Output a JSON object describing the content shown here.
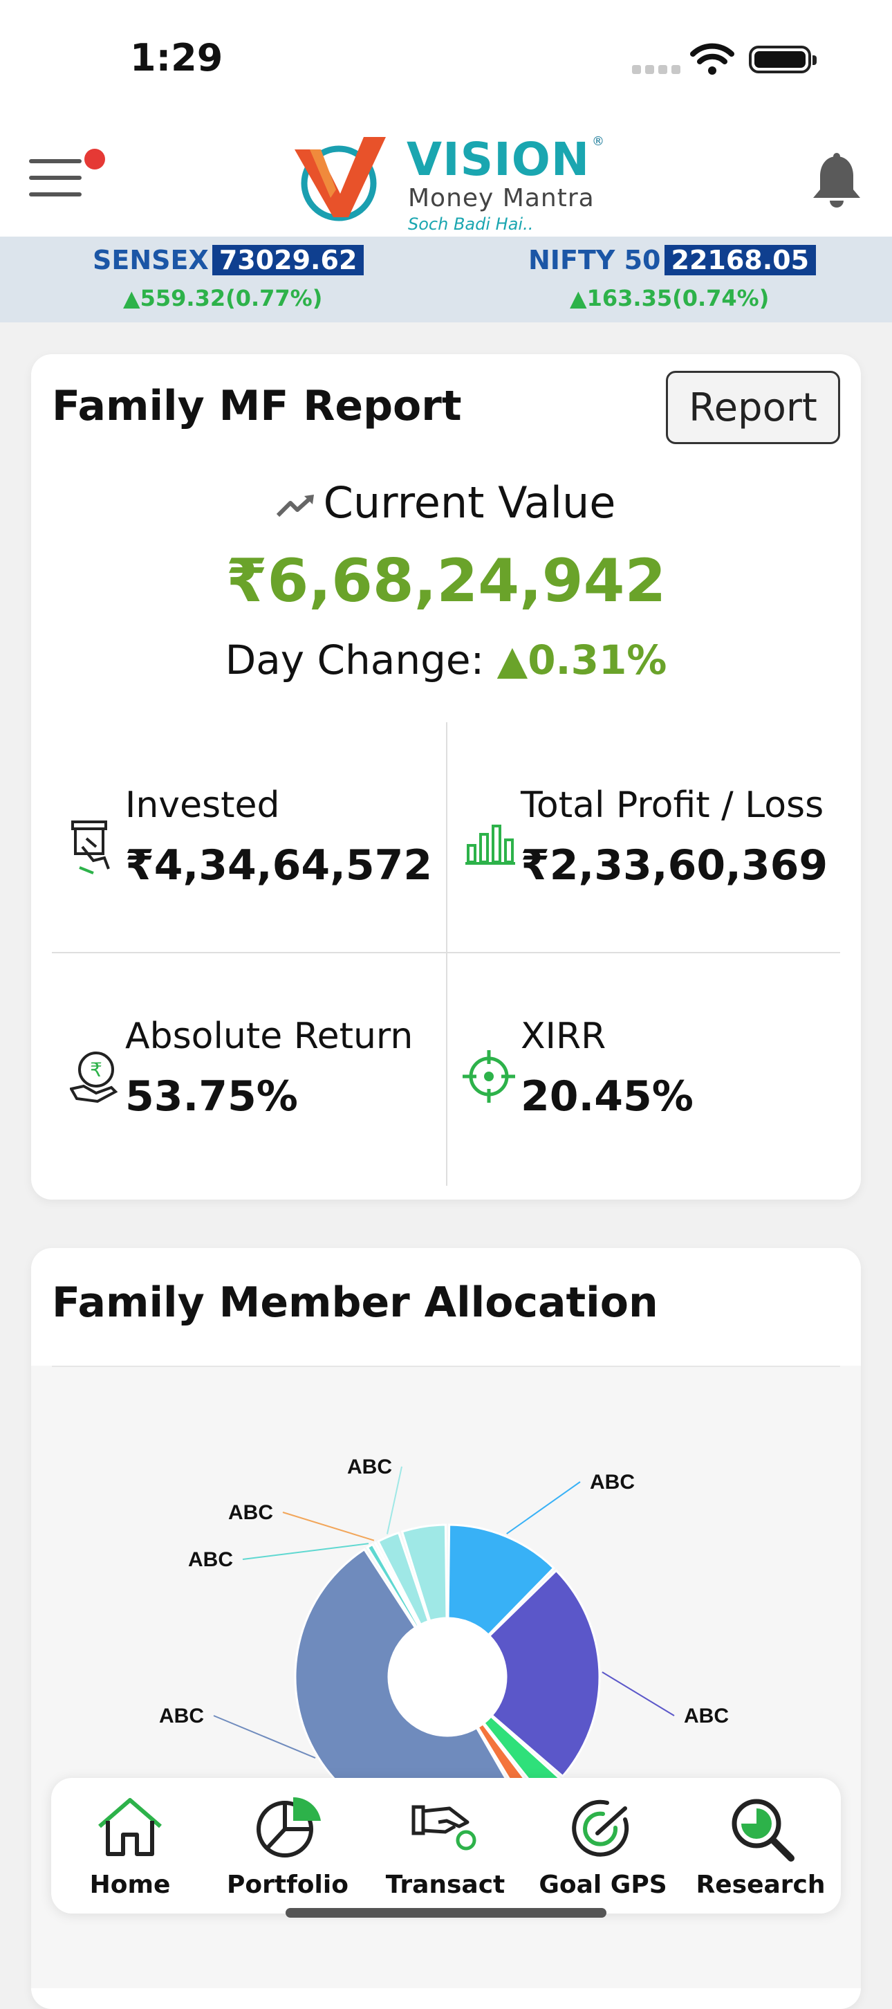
{
  "status_bar": {
    "time": "1:29"
  },
  "header": {
    "brand": {
      "name": "VISION",
      "registered": "®",
      "subtitle": "Money Mantra",
      "tagline": "Soch Badi Hai.."
    }
  },
  "ticker": [
    {
      "name": "SENSEX",
      "value": "73029.62",
      "change": "559.32(0.77%)"
    },
    {
      "name": "NIFTY 50",
      "value": "22168.05",
      "change": "163.35(0.74%)"
    }
  ],
  "mf_report": {
    "title": "Family MF Report",
    "report_button": "Report",
    "current_value_label": "Current Value",
    "current_value": "₹6,68,24,942",
    "day_change_label": "Day Change:",
    "day_change_value": "0.31%",
    "stats": [
      {
        "label": "Invested",
        "value": "₹4,34,64,572",
        "icon": "invest-hand-icon"
      },
      {
        "label": "Total Profit / Loss",
        "value": "₹2,33,60,369",
        "icon": "bar-chart-icon"
      },
      {
        "label": "Absolute Return",
        "value": "53.75%",
        "icon": "rupee-hand-icon"
      },
      {
        "label": "XIRR",
        "value": "20.45%",
        "icon": "crosshair-icon"
      }
    ],
    "colors": {
      "positive": "#6aa32a",
      "stat_icon": "#2db24a"
    }
  },
  "allocation": {
    "title": "Family Member Allocation"
  },
  "chart_data": {
    "type": "pie",
    "donut": true,
    "categories": [
      "ABC",
      "ABC",
      "ABC",
      "ABC",
      "ABC",
      "ABC",
      "ABC",
      "ABC",
      "ABC"
    ],
    "values": [
      12.5,
      24,
      3,
      2,
      49.5,
      1,
      0.3,
      2.7,
      5
    ],
    "colors": [
      "#38b1f6",
      "#5b57c9",
      "#2fe07a",
      "#f4743c",
      "#6f8bbd",
      "#5fd8d1",
      "#f2a65a",
      "#9fe8e6",
      "#9fe8e6"
    ],
    "slice_labels": [
      "ABC",
      "ABC",
      "ABC",
      "ABC",
      "ABC",
      "ABC",
      "ABC",
      "ABC",
      "ABC"
    ],
    "title": "",
    "legend": "none"
  },
  "bottom_nav": [
    {
      "label": "Home",
      "icon": "home-icon"
    },
    {
      "label": "Portfolio",
      "icon": "pie-chart-icon"
    },
    {
      "label": "Transact",
      "icon": "hand-coin-icon"
    },
    {
      "label": "Goal GPS",
      "icon": "goal-target-icon"
    },
    {
      "label": "Research",
      "icon": "research-search-icon"
    }
  ]
}
